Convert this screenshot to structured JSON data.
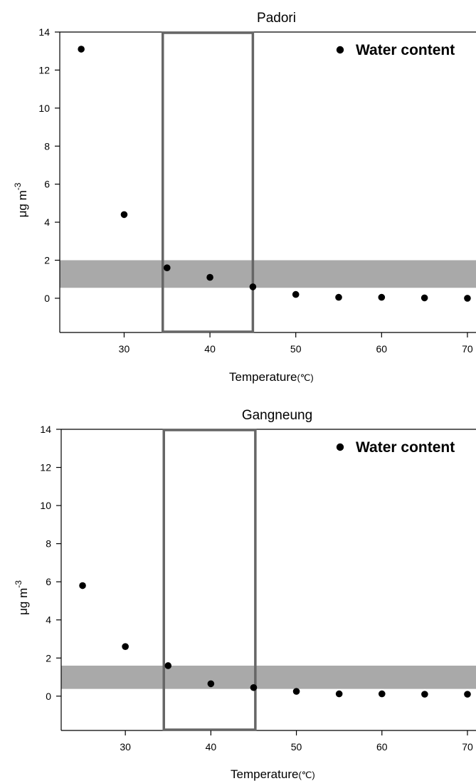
{
  "chart_data": [
    {
      "type": "scatter",
      "title": "Padori",
      "xlabel": "Temperature",
      "xlabel_unit": "(℃)",
      "ylabel": "μg m",
      "ylabel_exponent": "-3",
      "xlim": [
        22.5,
        71
      ],
      "ylim": [
        -1.8,
        14
      ],
      "xticks": [
        30,
        40,
        50,
        60,
        70
      ],
      "yticks": [
        0,
        2,
        4,
        6,
        8,
        10,
        12,
        14
      ],
      "grid": false,
      "legend_position": "top-right",
      "series": [
        {
          "name": "Water content",
          "color": "#000000",
          "points": [
            {
              "x": 25,
              "y": 13.1
            },
            {
              "x": 30,
              "y": 4.4
            },
            {
              "x": 35,
              "y": 1.6
            },
            {
              "x": 40,
              "y": 1.1
            },
            {
              "x": 45,
              "y": 0.6
            },
            {
              "x": 50,
              "y": 0.2
            },
            {
              "x": 55,
              "y": 0.05
            },
            {
              "x": 60,
              "y": 0.05
            },
            {
              "x": 65,
              "y": 0.02
            },
            {
              "x": 70,
              "y": 0.0
            }
          ]
        }
      ],
      "shaded_band": {
        "y": [
          0.55,
          2.0
        ],
        "color": "#a9a9a9"
      },
      "highlight_box": {
        "x": [
          34.5,
          45.0
        ],
        "y": [
          -1.8,
          14
        ],
        "color": "#666666"
      }
    },
    {
      "type": "scatter",
      "title": "Gangneung",
      "xlabel": "Temperature",
      "xlabel_unit": "(℃)",
      "ylabel": "μg m",
      "ylabel_exponent": "-3",
      "xlim": [
        22.5,
        71
      ],
      "ylim": [
        -1.8,
        14
      ],
      "xticks": [
        30,
        40,
        50,
        60,
        70
      ],
      "yticks": [
        0,
        2,
        4,
        6,
        8,
        10,
        12,
        14
      ],
      "grid": false,
      "legend_position": "top-right",
      "series": [
        {
          "name": "Water content",
          "color": "#000000",
          "points": [
            {
              "x": 25,
              "y": 5.8
            },
            {
              "x": 30,
              "y": 2.6
            },
            {
              "x": 35,
              "y": 1.6
            },
            {
              "x": 40,
              "y": 0.65
            },
            {
              "x": 45,
              "y": 0.45
            },
            {
              "x": 50,
              "y": 0.25
            },
            {
              "x": 55,
              "y": 0.12
            },
            {
              "x": 60,
              "y": 0.12
            },
            {
              "x": 65,
              "y": 0.1
            },
            {
              "x": 70,
              "y": 0.1
            }
          ]
        }
      ],
      "shaded_band": {
        "y": [
          0.38,
          1.6
        ],
        "color": "#a9a9a9"
      },
      "highlight_box": {
        "x": [
          34.5,
          45.2
        ],
        "y": [
          -1.8,
          14
        ],
        "color": "#666666"
      }
    }
  ]
}
